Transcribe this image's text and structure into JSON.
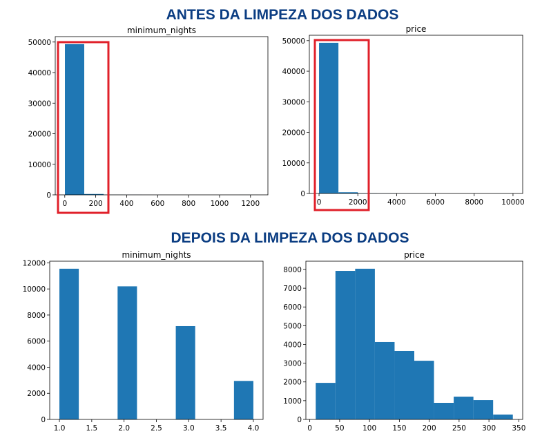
{
  "headings": [
    "ANTES DA LIMPEZA DOS DADOS",
    "DEPOIS DA LIMPEZA DOS DADOS"
  ],
  "chart_data": [
    {
      "type": "histogram",
      "title": "minimum_nights",
      "color": "#1f77b4",
      "bins": [
        1,
        125.9,
        250.8,
        375.7,
        500.6,
        625.5,
        750.4,
        875.3,
        1000.2,
        1125.1,
        1250
      ],
      "values": [
        49300,
        280,
        30,
        20,
        5,
        0,
        0,
        0,
        0,
        10
      ],
      "xlim": [
        -61.5,
        1312.5
      ],
      "xticks": [
        0,
        200,
        400,
        600,
        800,
        1000,
        1200
      ],
      "ylim": [
        0,
        51765
      ],
      "yticks": [
        0,
        10000,
        20000,
        30000,
        40000,
        50000
      ]
    },
    {
      "type": "histogram",
      "title": "price",
      "color": "#1f77b4",
      "bins": [
        0,
        1000,
        2000,
        3000,
        4000,
        5000,
        6000,
        7000,
        8000,
        9000,
        10000
      ],
      "values": [
        49300,
        400,
        100,
        50,
        20,
        10,
        5,
        3,
        2,
        10
      ],
      "xlim": [
        -500,
        10500
      ],
      "xticks": [
        0,
        2000,
        4000,
        6000,
        8000,
        10000
      ],
      "ylim": [
        0,
        51765
      ],
      "yticks": [
        0,
        10000,
        20000,
        30000,
        40000,
        50000
      ]
    },
    {
      "type": "histogram",
      "title": "minimum_nights",
      "color": "#1f77b4",
      "bins": [
        1,
        1.3,
        1.6,
        1.9,
        2.2,
        2.5,
        2.8,
        3.1,
        3.4,
        3.7,
        4
      ],
      "values": [
        11550,
        0,
        0,
        10200,
        0,
        0,
        7150,
        0,
        0,
        2950
      ],
      "xlim": [
        0.85,
        4.15
      ],
      "xticks": [
        {
          "value": 1,
          "label": "1.0"
        },
        1.5,
        {
          "value": 2,
          "label": "2.0"
        },
        2.5,
        {
          "value": 3,
          "label": "3.0"
        },
        3.5,
        {
          "value": 4,
          "label": "4.0"
        }
      ],
      "ylim": [
        0,
        12127
      ],
      "yticks": [
        0,
        2000,
        4000,
        6000,
        8000,
        10000,
        12000
      ]
    },
    {
      "type": "histogram",
      "title": "price",
      "color": "#1f77b4",
      "bins": [
        10,
        43,
        76,
        109,
        142,
        175,
        208,
        241,
        274,
        307,
        340
      ],
      "values": [
        1950,
        7925,
        8040,
        4130,
        3650,
        3130,
        885,
        1215,
        1030,
        260
      ],
      "xlim": [
        -6.5,
        356.5
      ],
      "xticks": [
        0,
        50,
        100,
        150,
        200,
        250,
        300,
        350
      ],
      "ylim": [
        0,
        8442
      ],
      "yticks": [
        0,
        1000,
        2000,
        3000,
        4000,
        5000,
        6000,
        7000,
        8000
      ]
    }
  ]
}
